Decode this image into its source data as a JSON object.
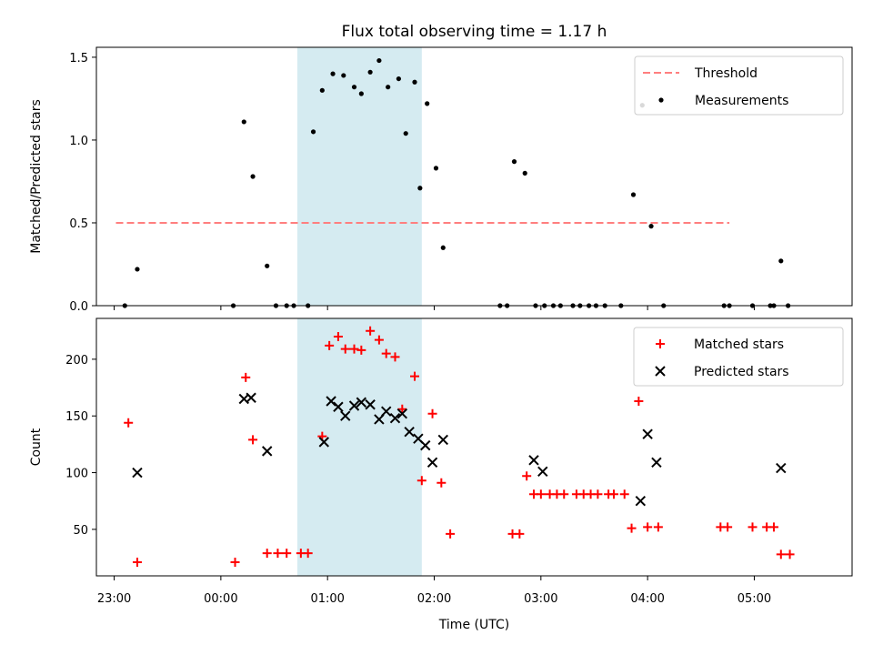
{
  "chart_data": {
    "type": "scatter",
    "title": "Flux total observing time = 1.17 h",
    "xlabel": "Time (UTC)",
    "x_ticks": [
      "23:00",
      "00:00",
      "01:00",
      "02:00",
      "03:00",
      "04:00",
      "05:00"
    ],
    "highlight_span": [
      "00:43",
      "01:53"
    ],
    "colors": {
      "highlight": "#d3eaf0",
      "threshold": "#ff7f7f",
      "measurements": "#000000",
      "matched": "#ff0000",
      "predicted": "#000000"
    },
    "panels": [
      {
        "ylabel": "Matched/Predicted stars",
        "ylim": [
          0,
          1.56
        ],
        "y_ticks": [
          "0.0",
          "0.5",
          "1.0",
          "1.5"
        ],
        "legend_position": "top-right",
        "threshold": {
          "name": "Threshold",
          "value": 0.5,
          "x_range": [
            "23:01",
            "04:46"
          ]
        },
        "series": [
          {
            "name": "Measurements",
            "marker": "dot",
            "points": [
              [
                "23:06",
                0
              ],
              [
                "23:13",
                0.22
              ],
              [
                "00:07",
                0
              ],
              [
                "00:13",
                1.11
              ],
              [
                "00:18",
                0.78
              ],
              [
                "00:26",
                0.24
              ],
              [
                "00:31",
                0
              ],
              [
                "00:37",
                0
              ],
              [
                "00:41",
                0
              ],
              [
                "00:49",
                0
              ],
              [
                "00:52",
                1.05
              ],
              [
                "00:57",
                1.3
              ],
              [
                "01:03",
                1.4
              ],
              [
                "01:09",
                1.39
              ],
              [
                "01:15",
                1.32
              ],
              [
                "01:19",
                1.28
              ],
              [
                "01:24",
                1.41
              ],
              [
                "01:29",
                1.48
              ],
              [
                "01:34",
                1.32
              ],
              [
                "01:40",
                1.37
              ],
              [
                "01:44",
                1.04
              ],
              [
                "01:49",
                1.35
              ],
              [
                "01:52",
                0.71
              ],
              [
                "01:56",
                1.22
              ],
              [
                "02:01",
                0.83
              ],
              [
                "02:05",
                0.35
              ],
              [
                "02:37",
                0
              ],
              [
                "02:41",
                0
              ],
              [
                "02:45",
                0.87
              ],
              [
                "02:51",
                0.8
              ],
              [
                "02:57",
                0
              ],
              [
                "03:02",
                0
              ],
              [
                "03:07",
                0
              ],
              [
                "03:11",
                0
              ],
              [
                "03:18",
                0
              ],
              [
                "03:22",
                0
              ],
              [
                "03:27",
                0
              ],
              [
                "03:31",
                0
              ],
              [
                "03:36",
                0
              ],
              [
                "03:45",
                0
              ],
              [
                "03:52",
                0.67
              ],
              [
                "03:57",
                1.21
              ],
              [
                "04:02",
                0.48
              ],
              [
                "04:09",
                0
              ],
              [
                "04:43",
                0
              ],
              [
                "04:46",
                0
              ],
              [
                "04:59",
                0
              ],
              [
                "05:09",
                0
              ],
              [
                "05:11",
                0
              ],
              [
                "05:15",
                0.27
              ],
              [
                "05:19",
                0
              ]
            ]
          }
        ]
      },
      {
        "ylabel": "Count",
        "ylim": [
          9,
          236
        ],
        "y_ticks": [
          "50",
          "100",
          "150",
          "200"
        ],
        "legend_position": "top-right",
        "series": [
          {
            "name": "Matched stars",
            "marker": "plus",
            "points": [
              [
                "23:08",
                144
              ],
              [
                "23:13",
                21
              ],
              [
                "00:08",
                21
              ],
              [
                "00:14",
                184
              ],
              [
                "00:18",
                129
              ],
              [
                "00:26",
                29
              ],
              [
                "00:32",
                29
              ],
              [
                "00:37",
                29
              ],
              [
                "00:45",
                29
              ],
              [
                "00:49",
                29
              ],
              [
                "00:57",
                132
              ],
              [
                "01:01",
                212
              ],
              [
                "01:06",
                220
              ],
              [
                "01:10",
                209
              ],
              [
                "01:15",
                209
              ],
              [
                "01:19",
                208
              ],
              [
                "01:24",
                225
              ],
              [
                "01:29",
                217
              ],
              [
                "01:33",
                205
              ],
              [
                "01:38",
                202
              ],
              [
                "01:42",
                156
              ],
              [
                "01:49",
                185
              ],
              [
                "01:53",
                93
              ],
              [
                "01:59",
                152
              ],
              [
                "02:04",
                91
              ],
              [
                "02:09",
                46
              ],
              [
                "02:44",
                46
              ],
              [
                "02:48",
                46
              ],
              [
                "02:52",
                97
              ],
              [
                "02:56",
                81
              ],
              [
                "03:00",
                81
              ],
              [
                "03:05",
                81
              ],
              [
                "03:09",
                81
              ],
              [
                "03:13",
                81
              ],
              [
                "03:20",
                81
              ],
              [
                "03:24",
                81
              ],
              [
                "03:28",
                81
              ],
              [
                "03:32",
                81
              ],
              [
                "03:38",
                81
              ],
              [
                "03:41",
                81
              ],
              [
                "03:47",
                81
              ],
              [
                "03:51",
                51
              ],
              [
                "03:55",
                163
              ],
              [
                "04:00",
                52
              ],
              [
                "04:06",
                52
              ],
              [
                "04:41",
                52
              ],
              [
                "04:45",
                52
              ],
              [
                "04:59",
                52
              ],
              [
                "05:07",
                52
              ],
              [
                "05:11",
                52
              ],
              [
                "05:15",
                28
              ],
              [
                "05:20",
                28
              ]
            ]
          },
          {
            "name": "Predicted stars",
            "marker": "x",
            "points": [
              [
                "23:13",
                100
              ],
              [
                "00:13",
                165
              ],
              [
                "00:17",
                166
              ],
              [
                "00:26",
                119
              ],
              [
                "00:58",
                127
              ],
              [
                "01:02",
                163
              ],
              [
                "01:06",
                158
              ],
              [
                "01:10",
                150
              ],
              [
                "01:15",
                159
              ],
              [
                "01:19",
                162
              ],
              [
                "01:24",
                160
              ],
              [
                "01:29",
                147
              ],
              [
                "01:33",
                154
              ],
              [
                "01:38",
                148
              ],
              [
                "01:42",
                152
              ],
              [
                "01:46",
                136
              ],
              [
                "01:51",
                130
              ],
              [
                "01:55",
                124
              ],
              [
                "01:59",
                109
              ],
              [
                "02:05",
                129
              ],
              [
                "02:56",
                111
              ],
              [
                "03:01",
                101
              ],
              [
                "03:56",
                75
              ],
              [
                "04:00",
                134
              ],
              [
                "04:05",
                109
              ],
              [
                "05:15",
                104
              ]
            ]
          }
        ]
      }
    ]
  }
}
